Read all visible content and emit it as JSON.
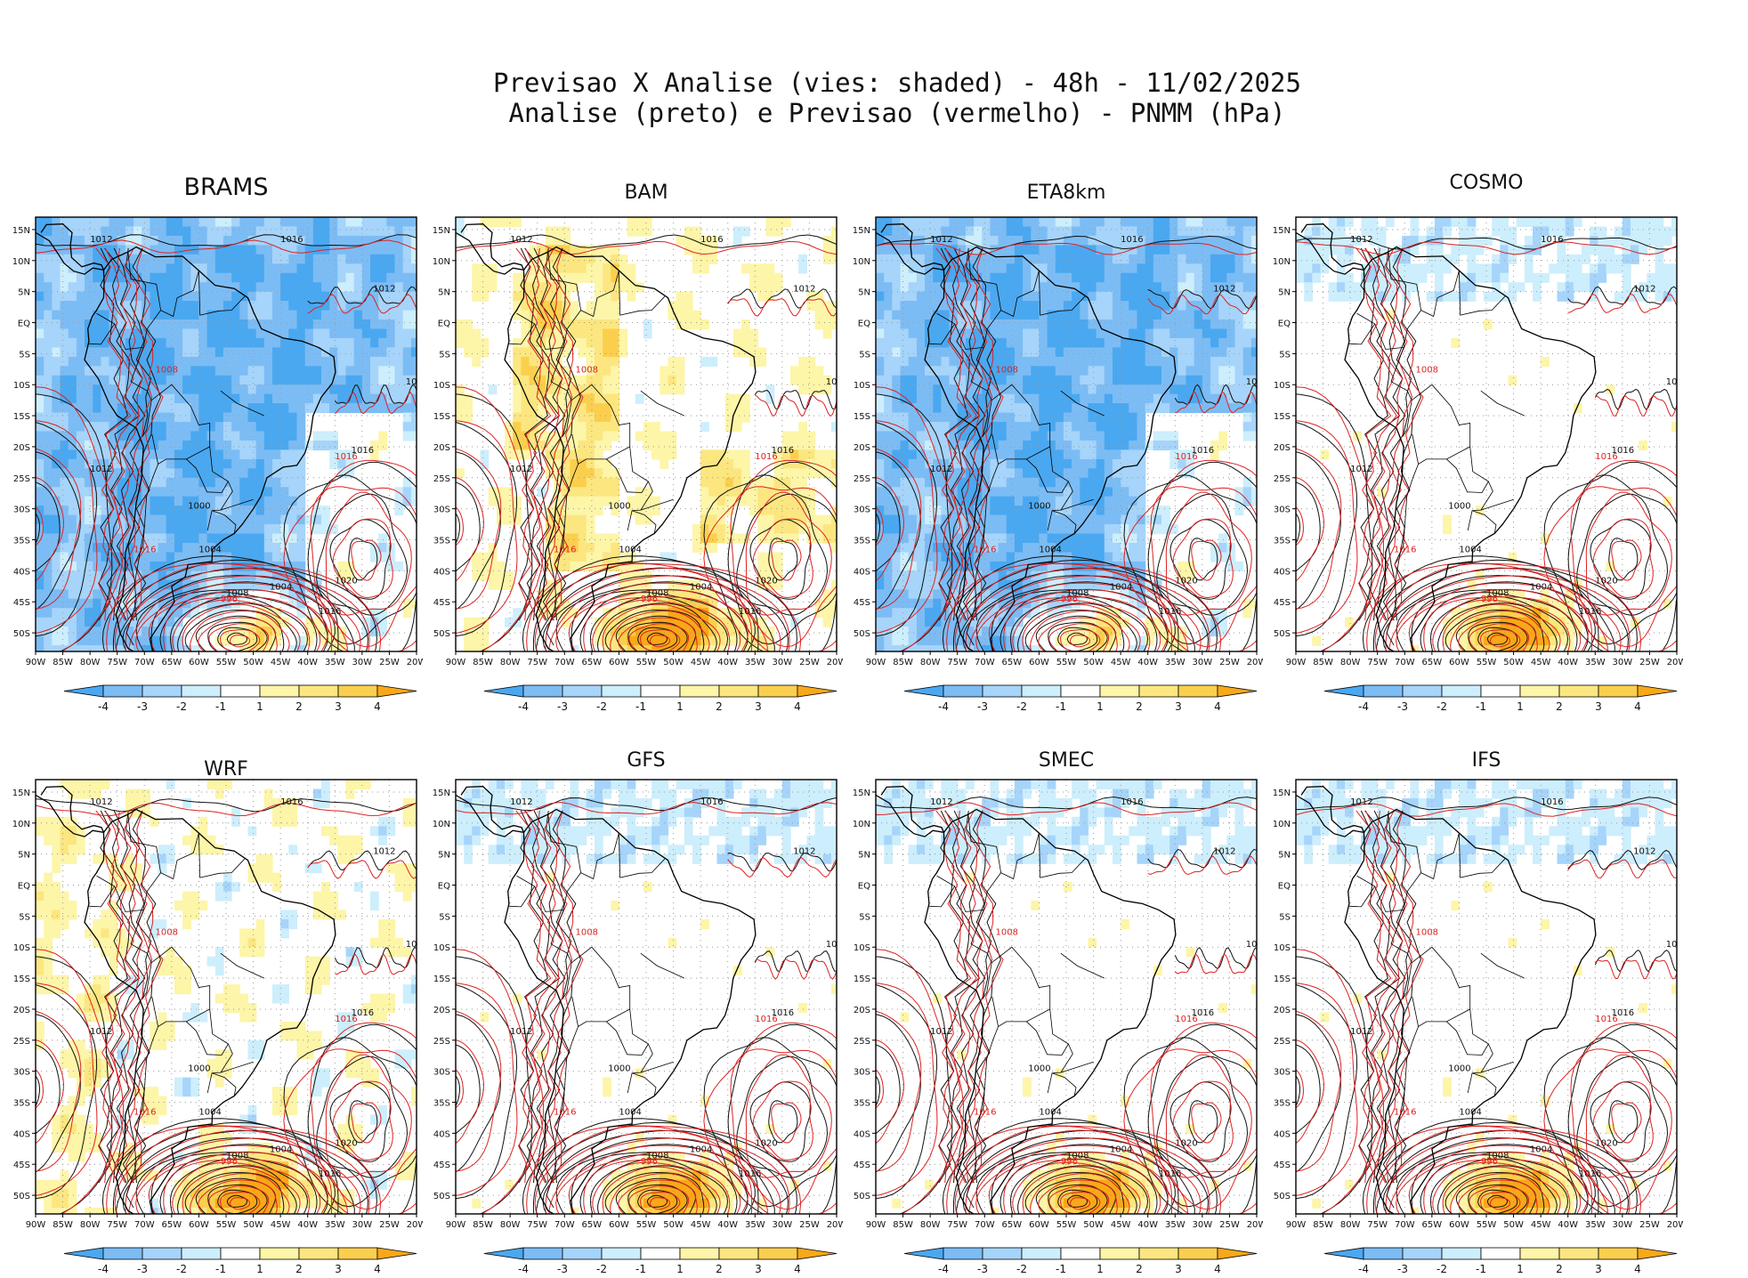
{
  "figure": {
    "title_line1": "Previsao X Analise (vies: shaded) - 48h - 11/02/2025",
    "title_line2": "Analise (preto) e Previsao (vermelho) - PNMM (hPa)"
  },
  "panels": [
    {
      "id": "brams",
      "title": "BRAMS",
      "bias": "negative"
    },
    {
      "id": "bam",
      "title": "BAM",
      "bias": "positive"
    },
    {
      "id": "eta8km",
      "title": "ETA8km",
      "bias": "negative"
    },
    {
      "id": "cosmo",
      "title": "COSMO",
      "bias": "light"
    },
    {
      "id": "wrf",
      "title": "WRF",
      "bias": "mixed"
    },
    {
      "id": "gfs",
      "title": "GFS",
      "bias": "light"
    },
    {
      "id": "smec",
      "title": "SMEC",
      "bias": "light"
    },
    {
      "id": "ifs",
      "title": "IFS",
      "bias": "light"
    }
  ],
  "axes": {
    "lon_labels": [
      "90W",
      "85W",
      "80W",
      "75W",
      "70W",
      "65W",
      "60W",
      "55W",
      "50W",
      "45W",
      "40W",
      "35W",
      "30W",
      "25W",
      "20W"
    ],
    "lat_labels": [
      "15N",
      "10N",
      "5N",
      "EQ",
      "5S",
      "10S",
      "15S",
      "20S",
      "25S",
      "30S",
      "35S",
      "40S",
      "45S",
      "50S"
    ]
  },
  "colorbar": {
    "labels": [
      "-4",
      "-3",
      "-2",
      "-1",
      "1",
      "2",
      "3",
      "4"
    ],
    "colors": [
      "#4aa8f0",
      "#7cbcf4",
      "#a6d4fa",
      "#cdeefc",
      "#ffffff",
      "#fdf5a8",
      "#fce680",
      "#fbcf4e",
      "#f8a818"
    ]
  },
  "contour_colors": {
    "analysis": "#111111",
    "forecast": "#dd2222"
  },
  "isobar_labels": {
    "common": [
      "1012",
      "1016",
      "1008",
      "1004",
      "1000",
      "1020",
      "996"
    ]
  }
}
